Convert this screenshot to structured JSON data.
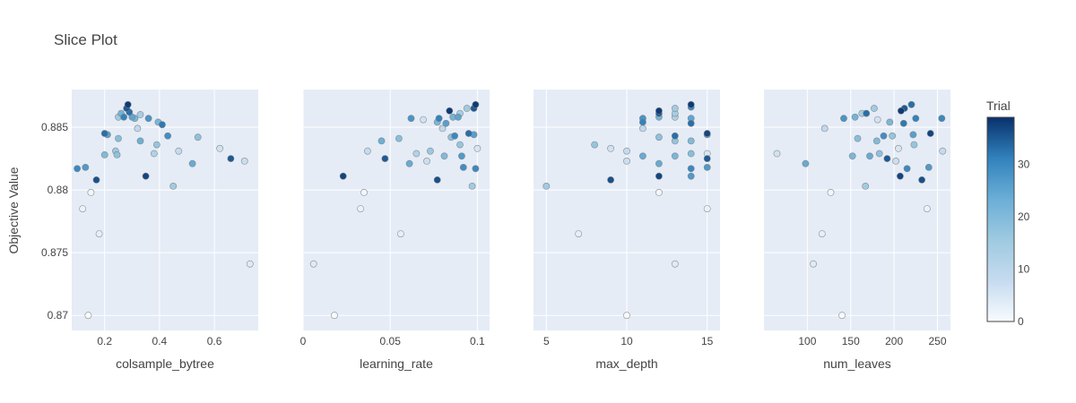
{
  "chart_data": {
    "type": "scatter",
    "title": "Slice Plot",
    "ylabel": "Objective Value",
    "ylim": [
      0.8688,
      0.888
    ],
    "yticks": [
      0.87,
      0.875,
      0.88,
      0.885
    ],
    "ytick_labels": [
      "0.87",
      "0.875",
      "0.88",
      "0.885"
    ],
    "colorbar": {
      "title": "Trial",
      "range": [
        0,
        39
      ],
      "ticks": [
        0,
        10,
        20,
        30
      ],
      "tick_labels": [
        "0",
        "10",
        "20",
        "30"
      ],
      "colorscale": [
        "#f7fbff",
        "#c6dbef",
        "#9ecae1",
        "#6baed6",
        "#3182bd",
        "#08306b"
      ]
    },
    "series": [
      {
        "name": "colsample_bytree",
        "xlabel": "colsample_bytree",
        "xlim": [
          0.08,
          0.76
        ],
        "xticks": [
          0.2,
          0.4,
          0.6
        ],
        "xtick_labels": [
          "0.2",
          "0.4",
          "0.6"
        ],
        "points": [
          {
            "x": 0.1,
            "y": 0.8817,
            "t": 30
          },
          {
            "x": 0.13,
            "y": 0.8818,
            "t": 27
          },
          {
            "x": 0.17,
            "y": 0.8808,
            "t": 36
          },
          {
            "x": 0.12,
            "y": 0.8785,
            "t": 2
          },
          {
            "x": 0.15,
            "y": 0.8798,
            "t": 1
          },
          {
            "x": 0.18,
            "y": 0.8765,
            "t": 3
          },
          {
            "x": 0.14,
            "y": 0.87,
            "t": 0
          },
          {
            "x": 0.2,
            "y": 0.8845,
            "t": 33
          },
          {
            "x": 0.21,
            "y": 0.8844,
            "t": 26
          },
          {
            "x": 0.2,
            "y": 0.8828,
            "t": 20
          },
          {
            "x": 0.24,
            "y": 0.8831,
            "t": 16
          },
          {
            "x": 0.245,
            "y": 0.8828,
            "t": 18
          },
          {
            "x": 0.25,
            "y": 0.8841,
            "t": 19
          },
          {
            "x": 0.25,
            "y": 0.8858,
            "t": 15
          },
          {
            "x": 0.26,
            "y": 0.8861,
            "t": 22
          },
          {
            "x": 0.27,
            "y": 0.8858,
            "t": 31
          },
          {
            "x": 0.28,
            "y": 0.8865,
            "t": 35
          },
          {
            "x": 0.285,
            "y": 0.8868,
            "t": 38
          },
          {
            "x": 0.29,
            "y": 0.8862,
            "t": 33
          },
          {
            "x": 0.3,
            "y": 0.8858,
            "t": 25
          },
          {
            "x": 0.31,
            "y": 0.8857,
            "t": 21
          },
          {
            "x": 0.32,
            "y": 0.8849,
            "t": 9
          },
          {
            "x": 0.33,
            "y": 0.886,
            "t": 14
          },
          {
            "x": 0.33,
            "y": 0.8839,
            "t": 23
          },
          {
            "x": 0.35,
            "y": 0.8811,
            "t": 37
          },
          {
            "x": 0.36,
            "y": 0.8857,
            "t": 28
          },
          {
            "x": 0.38,
            "y": 0.8829,
            "t": 12
          },
          {
            "x": 0.39,
            "y": 0.8836,
            "t": 17
          },
          {
            "x": 0.395,
            "y": 0.8854,
            "t": 21
          },
          {
            "x": 0.41,
            "y": 0.8852,
            "t": 32
          },
          {
            "x": 0.43,
            "y": 0.8843,
            "t": 29
          },
          {
            "x": 0.45,
            "y": 0.8803,
            "t": 15
          },
          {
            "x": 0.47,
            "y": 0.8831,
            "t": 8
          },
          {
            "x": 0.52,
            "y": 0.8821,
            "t": 24
          },
          {
            "x": 0.54,
            "y": 0.8842,
            "t": 18
          },
          {
            "x": 0.62,
            "y": 0.8833,
            "t": 6
          },
          {
            "x": 0.66,
            "y": 0.8825,
            "t": 35
          },
          {
            "x": 0.71,
            "y": 0.8823,
            "t": 7
          },
          {
            "x": 0.73,
            "y": 0.8741,
            "t": 4
          }
        ]
      },
      {
        "name": "learning_rate",
        "xlabel": "learning_rate",
        "xlim": [
          0,
          0.107
        ],
        "xticks": [
          0,
          0.05,
          0.1
        ],
        "xtick_labels": [
          "0",
          "0.05",
          "0.1"
        ],
        "points": [
          {
            "x": 0.006,
            "y": 0.8741,
            "t": 4
          },
          {
            "x": 0.018,
            "y": 0.87,
            "t": 0
          },
          {
            "x": 0.023,
            "y": 0.8811,
            "t": 37
          },
          {
            "x": 0.033,
            "y": 0.8785,
            "t": 2
          },
          {
            "x": 0.035,
            "y": 0.8798,
            "t": 1
          },
          {
            "x": 0.037,
            "y": 0.8831,
            "t": 8
          },
          {
            "x": 0.045,
            "y": 0.8839,
            "t": 23
          },
          {
            "x": 0.047,
            "y": 0.8825,
            "t": 35
          },
          {
            "x": 0.055,
            "y": 0.8841,
            "t": 19
          },
          {
            "x": 0.056,
            "y": 0.8765,
            "t": 3
          },
          {
            "x": 0.061,
            "y": 0.8821,
            "t": 24
          },
          {
            "x": 0.062,
            "y": 0.8857,
            "t": 28
          },
          {
            "x": 0.065,
            "y": 0.8829,
            "t": 12
          },
          {
            "x": 0.069,
            "y": 0.8856,
            "t": 6
          },
          {
            "x": 0.071,
            "y": 0.8823,
            "t": 7
          },
          {
            "x": 0.073,
            "y": 0.8831,
            "t": 16
          },
          {
            "x": 0.077,
            "y": 0.8808,
            "t": 36
          },
          {
            "x": 0.077,
            "y": 0.8854,
            "t": 21
          },
          {
            "x": 0.078,
            "y": 0.8857,
            "t": 31
          },
          {
            "x": 0.08,
            "y": 0.8849,
            "t": 9
          },
          {
            "x": 0.081,
            "y": 0.8827,
            "t": 20
          },
          {
            "x": 0.082,
            "y": 0.8853,
            "t": 26
          },
          {
            "x": 0.084,
            "y": 0.8863,
            "t": 38
          },
          {
            "x": 0.085,
            "y": 0.8842,
            "t": 18
          },
          {
            "x": 0.086,
            "y": 0.8858,
            "t": 22
          },
          {
            "x": 0.087,
            "y": 0.8843,
            "t": 30
          },
          {
            "x": 0.089,
            "y": 0.8858,
            "t": 25
          },
          {
            "x": 0.09,
            "y": 0.8836,
            "t": 17
          },
          {
            "x": 0.09,
            "y": 0.8861,
            "t": 14
          },
          {
            "x": 0.091,
            "y": 0.8827,
            "t": 27
          },
          {
            "x": 0.092,
            "y": 0.8818,
            "t": 29
          },
          {
            "x": 0.094,
            "y": 0.8865,
            "t": 15
          },
          {
            "x": 0.095,
            "y": 0.8845,
            "t": 33
          },
          {
            "x": 0.097,
            "y": 0.8803,
            "t": 15
          },
          {
            "x": 0.098,
            "y": 0.8844,
            "t": 26
          },
          {
            "x": 0.098,
            "y": 0.8865,
            "t": 35
          },
          {
            "x": 0.099,
            "y": 0.8868,
            "t": 38
          },
          {
            "x": 0.099,
            "y": 0.8817,
            "t": 30
          },
          {
            "x": 0.1,
            "y": 0.8833,
            "t": 5
          }
        ]
      },
      {
        "name": "max_depth",
        "xlabel": "max_depth",
        "xlim": [
          4.2,
          15.8
        ],
        "xticks": [
          5,
          10,
          15
        ],
        "xtick_labels": [
          "5",
          "10",
          "15"
        ],
        "points": [
          {
            "x": 5,
            "y": 0.8803,
            "t": 15
          },
          {
            "x": 7,
            "y": 0.8765,
            "t": 3
          },
          {
            "x": 8,
            "y": 0.8836,
            "t": 17
          },
          {
            "x": 9,
            "y": 0.8833,
            "t": 6
          },
          {
            "x": 9,
            "y": 0.8808,
            "t": 36
          },
          {
            "x": 10,
            "y": 0.87,
            "t": 0
          },
          {
            "x": 10,
            "y": 0.8823,
            "t": 7
          },
          {
            "x": 10,
            "y": 0.8831,
            "t": 8
          },
          {
            "x": 11,
            "y": 0.8857,
            "t": 28
          },
          {
            "x": 11,
            "y": 0.8854,
            "t": 31
          },
          {
            "x": 11,
            "y": 0.8849,
            "t": 9
          },
          {
            "x": 11,
            "y": 0.8827,
            "t": 24
          },
          {
            "x": 12,
            "y": 0.8863,
            "t": 38
          },
          {
            "x": 12,
            "y": 0.8861,
            "t": 35
          },
          {
            "x": 12,
            "y": 0.8858,
            "t": 22
          },
          {
            "x": 12,
            "y": 0.8842,
            "t": 18
          },
          {
            "x": 12,
            "y": 0.8821,
            "t": 24
          },
          {
            "x": 12,
            "y": 0.8811,
            "t": 37
          },
          {
            "x": 12,
            "y": 0.8798,
            "t": 1
          },
          {
            "x": 13,
            "y": 0.8865,
            "t": 15
          },
          {
            "x": 13,
            "y": 0.8861,
            "t": 14
          },
          {
            "x": 13,
            "y": 0.8858,
            "t": 12
          },
          {
            "x": 13,
            "y": 0.8843,
            "t": 33
          },
          {
            "x": 13,
            "y": 0.8839,
            "t": 17
          },
          {
            "x": 13,
            "y": 0.8827,
            "t": 21
          },
          {
            "x": 13,
            "y": 0.8741,
            "t": 4
          },
          {
            "x": 14,
            "y": 0.8868,
            "t": 38
          },
          {
            "x": 14,
            "y": 0.8866,
            "t": 30
          },
          {
            "x": 14,
            "y": 0.8857,
            "t": 25
          },
          {
            "x": 14,
            "y": 0.8853,
            "t": 33
          },
          {
            "x": 14,
            "y": 0.8839,
            "t": 20
          },
          {
            "x": 14,
            "y": 0.8829,
            "t": 19
          },
          {
            "x": 14,
            "y": 0.8817,
            "t": 30
          },
          {
            "x": 14,
            "y": 0.8811,
            "t": 27
          },
          {
            "x": 15,
            "y": 0.8845,
            "t": 37
          },
          {
            "x": 15,
            "y": 0.8844,
            "t": 26
          },
          {
            "x": 15,
            "y": 0.8829,
            "t": 5
          },
          {
            "x": 15,
            "y": 0.8825,
            "t": 35
          },
          {
            "x": 15,
            "y": 0.8818,
            "t": 27
          },
          {
            "x": 15,
            "y": 0.8785,
            "t": 2
          }
        ]
      },
      {
        "name": "num_leaves",
        "xlabel": "num_leaves",
        "xlim": [
          50,
          265
        ],
        "xticks": [
          100,
          150,
          200,
          250
        ],
        "xtick_labels": [
          "100",
          "150",
          "200",
          "250"
        ],
        "points": [
          {
            "x": 65,
            "y": 0.8829,
            "t": 6
          },
          {
            "x": 98,
            "y": 0.8821,
            "t": 24
          },
          {
            "x": 107,
            "y": 0.8741,
            "t": 4
          },
          {
            "x": 117,
            "y": 0.8765,
            "t": 3
          },
          {
            "x": 120,
            "y": 0.8849,
            "t": 9
          },
          {
            "x": 127,
            "y": 0.8798,
            "t": 1
          },
          {
            "x": 140,
            "y": 0.87,
            "t": 0
          },
          {
            "x": 142,
            "y": 0.8857,
            "t": 28
          },
          {
            "x": 152,
            "y": 0.8827,
            "t": 21
          },
          {
            "x": 155,
            "y": 0.8858,
            "t": 22
          },
          {
            "x": 158,
            "y": 0.8841,
            "t": 19
          },
          {
            "x": 163,
            "y": 0.8861,
            "t": 14
          },
          {
            "x": 167,
            "y": 0.8803,
            "t": 15
          },
          {
            "x": 168,
            "y": 0.8861,
            "t": 33
          },
          {
            "x": 172,
            "y": 0.8827,
            "t": 24
          },
          {
            "x": 177,
            "y": 0.8865,
            "t": 15
          },
          {
            "x": 180,
            "y": 0.8839,
            "t": 20
          },
          {
            "x": 181,
            "y": 0.8856,
            "t": 6
          },
          {
            "x": 183,
            "y": 0.8829,
            "t": 18
          },
          {
            "x": 188,
            "y": 0.8843,
            "t": 29
          },
          {
            "x": 192,
            "y": 0.8825,
            "t": 35
          },
          {
            "x": 195,
            "y": 0.8854,
            "t": 21
          },
          {
            "x": 198,
            "y": 0.8843,
            "t": 17
          },
          {
            "x": 202,
            "y": 0.8823,
            "t": 7
          },
          {
            "x": 205,
            "y": 0.8833,
            "t": 5
          },
          {
            "x": 207,
            "y": 0.8811,
            "t": 37
          },
          {
            "x": 208,
            "y": 0.8863,
            "t": 38
          },
          {
            "x": 211,
            "y": 0.8853,
            "t": 32
          },
          {
            "x": 212,
            "y": 0.8865,
            "t": 35
          },
          {
            "x": 215,
            "y": 0.8817,
            "t": 30
          },
          {
            "x": 220,
            "y": 0.8868,
            "t": 33
          },
          {
            "x": 222,
            "y": 0.8844,
            "t": 26
          },
          {
            "x": 223,
            "y": 0.8836,
            "t": 17
          },
          {
            "x": 225,
            "y": 0.8857,
            "t": 31
          },
          {
            "x": 232,
            "y": 0.8808,
            "t": 36
          },
          {
            "x": 238,
            "y": 0.8785,
            "t": 2
          },
          {
            "x": 240,
            "y": 0.8818,
            "t": 27
          },
          {
            "x": 242,
            "y": 0.8845,
            "t": 37
          },
          {
            "x": 255,
            "y": 0.8857,
            "t": 30
          },
          {
            "x": 256,
            "y": 0.8831,
            "t": 8
          }
        ]
      }
    ]
  }
}
